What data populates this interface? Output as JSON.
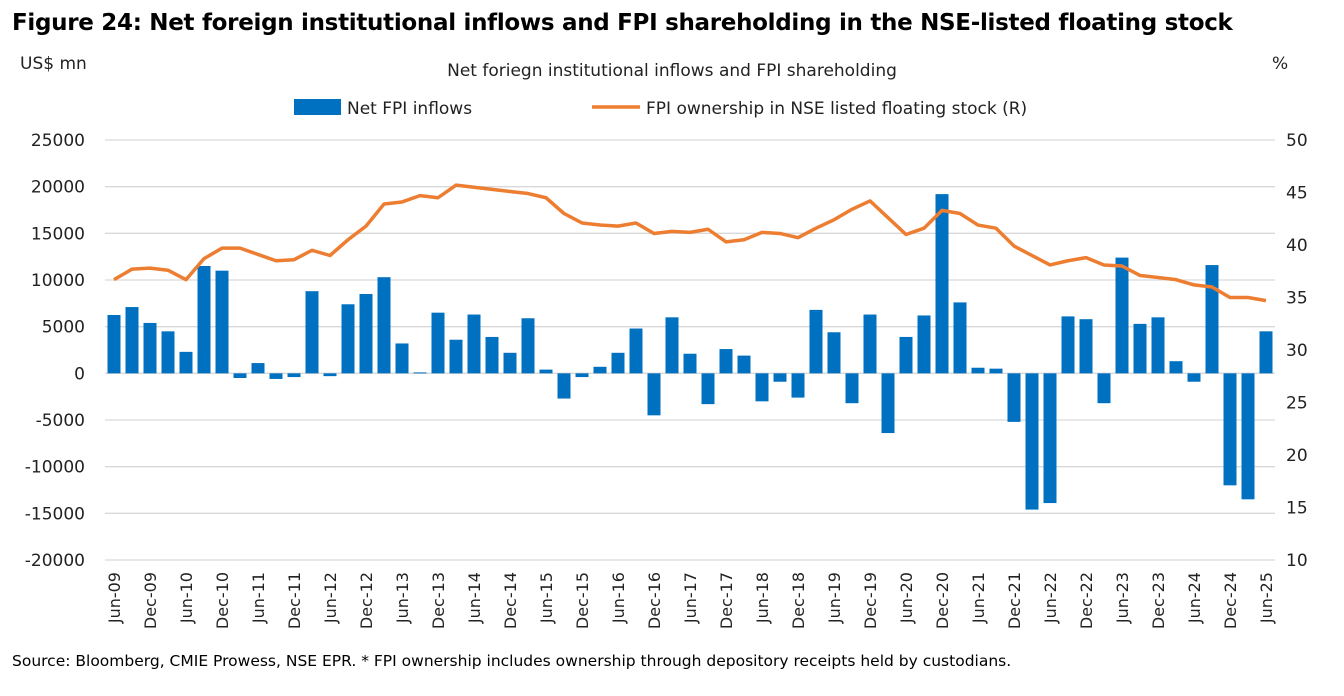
{
  "figure_title": "Figure 24: Net foreign institutional inflows and FPI shareholding in the NSE-listed floating stock",
  "source": "Source: Bloomberg, CMIE Prowess, NSE EPR. * FPI ownership includes ownership through depository receipts held by custodians.",
  "chart_data": {
    "type": "bar+line",
    "title": "Net foriegn institutional inflows and FPI shareholding",
    "ylabel_left": "US$ mn",
    "ylabel_right": "%",
    "ylim_left": [
      -20000,
      25000
    ],
    "ylim_right": [
      10,
      50
    ],
    "yticks_left": [
      "25000",
      "20000",
      "15000",
      "10000",
      "5000",
      "0",
      "-5000",
      "-10000",
      "-15000",
      "-20000"
    ],
    "yticks_right": [
      "50",
      "45",
      "40",
      "35",
      "30",
      "25",
      "20",
      "15",
      "10"
    ],
    "grid": true,
    "legend_position": "top-center",
    "x_start": "Jun-09",
    "x_frequency": "quarterly",
    "tick_labels": [
      "Jun-09",
      "Dec-09",
      "Jun-10",
      "Dec-10",
      "Jun-11",
      "Dec-11",
      "Jun-12",
      "Dec-12",
      "Jun-13",
      "Dec-13",
      "Jun-14",
      "Dec-14",
      "Jun-15",
      "Dec-15",
      "Jun-16",
      "Dec-16",
      "Jun-17",
      "Dec-17",
      "Jun-18",
      "Dec-18",
      "Jun-19",
      "Dec-19",
      "Jun-20",
      "Dec-20",
      "Jun-21",
      "Dec-21",
      "Jun-22",
      "Dec-22",
      "Jun-23",
      "Dec-23",
      "Jun-24",
      "Dec-24",
      "Jun-25"
    ],
    "series": [
      {
        "name": "Net FPI inflows",
        "type": "bar",
        "axis": "left",
        "color": "#0070C0",
        "values": [
          6250,
          7100,
          5400,
          4500,
          2300,
          11500,
          11000,
          -500,
          1100,
          -600,
          -400,
          8800,
          -300,
          7400,
          8500,
          10300,
          3200,
          100,
          6500,
          3600,
          6300,
          3900,
          2200,
          5900,
          400,
          -2700,
          -400,
          700,
          2200,
          4800,
          -4500,
          6000,
          2100,
          -3300,
          2600,
          1900,
          -3000,
          -900,
          -2600,
          6800,
          4400,
          -3200,
          6300,
          -6400,
          3900,
          6200,
          19200,
          7600,
          600,
          500,
          -5200,
          -14600,
          -13900,
          6100,
          5800,
          -3200,
          12400,
          5300,
          6000,
          1300,
          -900,
          11600,
          -12000,
          -13500,
          4500
        ]
      },
      {
        "name": "FPI ownership in NSE listed floating stock (R)",
        "type": "line",
        "axis": "right",
        "color": "#ED7D31",
        "values": [
          36.7,
          37.7,
          37.8,
          37.6,
          36.7,
          38.7,
          39.7,
          39.7,
          39.1,
          38.5,
          38.6,
          39.5,
          39.0,
          40.5,
          41.8,
          43.9,
          44.1,
          44.7,
          44.5,
          45.7,
          45.5,
          45.3,
          45.1,
          44.9,
          44.5,
          43.0,
          42.1,
          41.9,
          41.8,
          42.1,
          41.1,
          41.3,
          41.2,
          41.5,
          40.3,
          40.5,
          41.2,
          41.1,
          40.7,
          41.6,
          42.4,
          43.4,
          44.2,
          42.6,
          41.0,
          41.6,
          43.3,
          43.0,
          41.9,
          41.6,
          39.9,
          39.0,
          38.1,
          38.5,
          38.8,
          38.1,
          38.0,
          37.1,
          36.9,
          36.7,
          36.2,
          36.0,
          35.0,
          35.0,
          34.7
        ]
      }
    ]
  }
}
